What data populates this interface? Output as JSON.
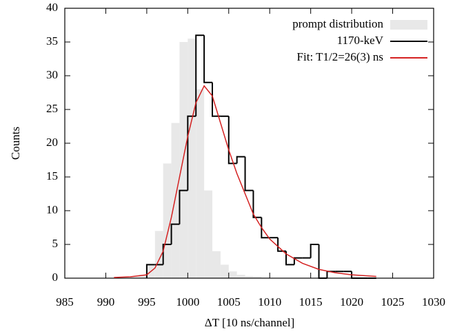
{
  "chart_data": {
    "type": "histogram",
    "x_label": "ΔT [10 ns/channel]",
    "y_label": "Counts",
    "xlim": [
      985,
      1030
    ],
    "xticks": [
      985,
      990,
      995,
      1000,
      1005,
      1010,
      1015,
      1020,
      1025,
      1030
    ],
    "ylim": [
      0,
      40
    ],
    "yticks": [
      0,
      5,
      10,
      15,
      20,
      25,
      30,
      35,
      40
    ],
    "legend": "top-right",
    "series": [
      {
        "name": "prompt distribution",
        "color": "#e8e8e8",
        "style": "filled",
        "bins": [
          993,
          994,
          995,
          996,
          997,
          998,
          999,
          1000,
          1001,
          1002,
          1003,
          1004,
          1005,
          1006,
          1007,
          1008,
          1009,
          1010
        ],
        "values": [
          0.2,
          0.5,
          2,
          7,
          17,
          23,
          35,
          35.5,
          28,
          13,
          4,
          2,
          1,
          0.5,
          0.3,
          0.2,
          0.1
        ]
      },
      {
        "name": "1170-keV",
        "color": "#000000",
        "style": "step",
        "bins": [
          995,
          996,
          997,
          998,
          999,
          1000,
          1001,
          1002,
          1003,
          1004,
          1005,
          1006,
          1007,
          1008,
          1009,
          1010,
          1011,
          1012,
          1013,
          1014,
          1015,
          1016,
          1017,
          1018,
          1019,
          1020,
          1021,
          1022,
          1023
        ],
        "values": [
          2,
          2,
          5,
          8,
          13,
          24,
          36,
          29,
          24,
          24,
          17,
          18,
          13,
          9,
          6,
          6,
          4,
          2,
          3,
          3,
          5,
          0,
          1,
          1,
          1,
          0,
          0,
          0
        ]
      },
      {
        "name": "Fit: T1/2=26(3) ns",
        "color": "#d42020",
        "style": "line",
        "x": [
          991,
          993,
          995,
          996,
          997,
          998,
          999,
          1000,
          1001,
          1002,
          1003,
          1004,
          1005,
          1006,
          1007,
          1008,
          1009,
          1010,
          1012,
          1014,
          1016,
          1018,
          1020,
          1023
        ],
        "values": [
          0.1,
          0.2,
          0.5,
          1.5,
          4,
          9,
          15,
          21,
          26,
          28.5,
          27,
          23,
          19,
          15.5,
          12.5,
          9.5,
          7.5,
          5.8,
          3.6,
          2.2,
          1.3,
          0.8,
          0.5,
          0.25
        ]
      }
    ]
  }
}
